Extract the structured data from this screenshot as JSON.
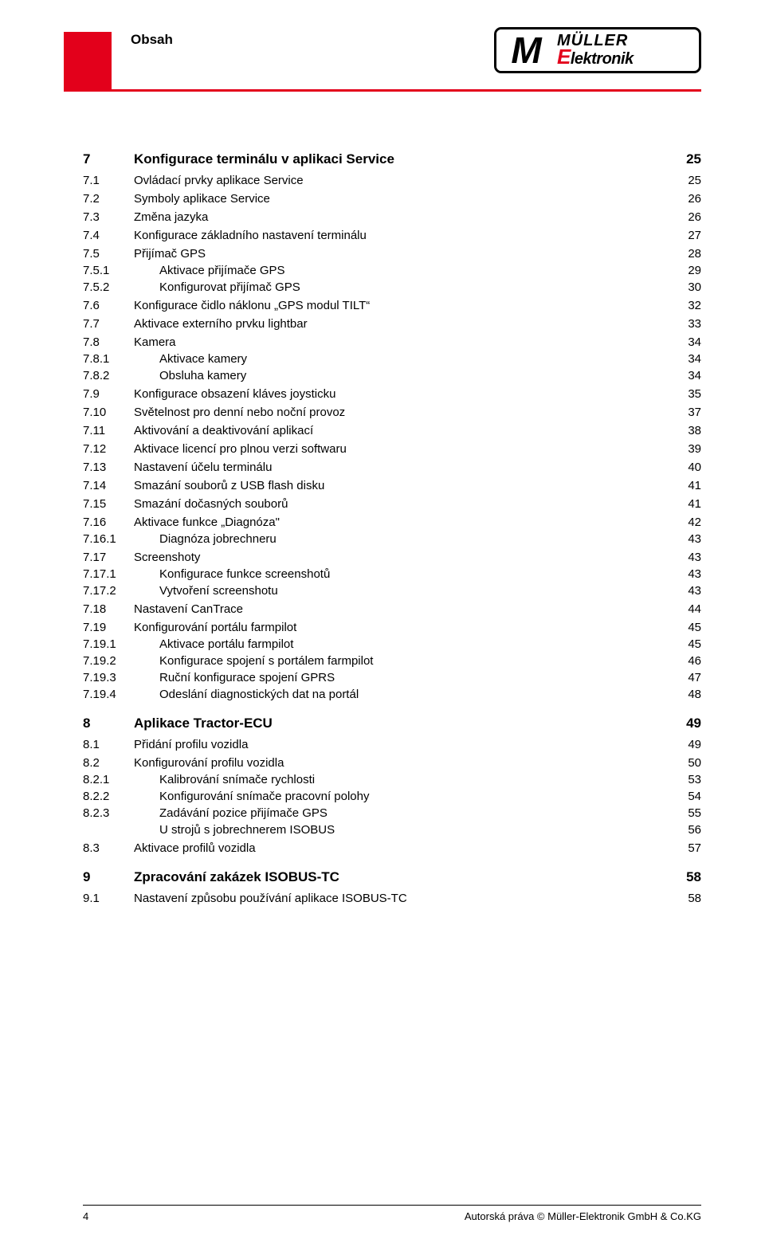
{
  "header": {
    "title": "Obsah"
  },
  "logo": {
    "m": "M",
    "line1": "MÜLLER",
    "line2_e": "E",
    "line2_rest": "lektronik"
  },
  "toc": [
    {
      "l": 1,
      "n": "7",
      "t": "Konfigurace terminálu v aplikaci Service",
      "p": "25"
    },
    {
      "l": 2,
      "n": "7.1",
      "t": "Ovládací prvky aplikace Service",
      "p": "25"
    },
    {
      "l": 2,
      "n": "7.2",
      "t": "Symboly aplikace Service",
      "p": "26"
    },
    {
      "l": 2,
      "n": "7.3",
      "t": "Změna jazyka",
      "p": "26"
    },
    {
      "l": 2,
      "n": "7.4",
      "t": "Konfigurace základního nastavení terminálu",
      "p": "27"
    },
    {
      "l": 2,
      "n": "7.5",
      "t": "Přijímač GPS",
      "p": "28"
    },
    {
      "l": 3,
      "n": "7.5.1",
      "t": "Aktivace přijímače GPS",
      "p": "29"
    },
    {
      "l": 3,
      "n": "7.5.2",
      "t": "Konfigurovat přijímač GPS",
      "p": "30"
    },
    {
      "l": 2,
      "n": "7.6",
      "t": "Konfigurace čidlo náklonu „GPS modul TILT“",
      "p": "32"
    },
    {
      "l": 2,
      "n": "7.7",
      "t": "Aktivace externího prvku lightbar",
      "p": "33"
    },
    {
      "l": 2,
      "n": "7.8",
      "t": "Kamera",
      "p": "34"
    },
    {
      "l": 3,
      "n": "7.8.1",
      "t": "Aktivace kamery",
      "p": "34"
    },
    {
      "l": 3,
      "n": "7.8.2",
      "t": "Obsluha kamery",
      "p": "34"
    },
    {
      "l": 2,
      "n": "7.9",
      "t": "Konfigurace obsazení kláves joysticku",
      "p": "35"
    },
    {
      "l": 2,
      "n": "7.10",
      "t": "Světelnost pro denní nebo noční provoz",
      "p": "37"
    },
    {
      "l": 2,
      "n": "7.11",
      "t": "Aktivování a deaktivování aplikací",
      "p": "38"
    },
    {
      "l": 2,
      "n": "7.12",
      "t": "Aktivace licencí pro plnou verzi softwaru",
      "p": "39"
    },
    {
      "l": 2,
      "n": "7.13",
      "t": "Nastavení účelu terminálu",
      "p": "40"
    },
    {
      "l": 2,
      "n": "7.14",
      "t": "Smazání souborů z USB flash disku",
      "p": "41"
    },
    {
      "l": 2,
      "n": "7.15",
      "t": "Smazání dočasných souborů",
      "p": "41"
    },
    {
      "l": 2,
      "n": "7.16",
      "t": "Aktivace funkce „Diagnóza\"",
      "p": "42"
    },
    {
      "l": 3,
      "n": "7.16.1",
      "t": "Diagnóza jobrechneru",
      "p": "43"
    },
    {
      "l": 2,
      "n": "7.17",
      "t": "Screenshoty",
      "p": "43"
    },
    {
      "l": 3,
      "n": "7.17.1",
      "t": "Konfigurace funkce screenshotů",
      "p": "43"
    },
    {
      "l": 3,
      "n": "7.17.2",
      "t": "Vytvoření screenshotu",
      "p": "43"
    },
    {
      "l": 2,
      "n": "7.18",
      "t": "Nastavení CanTrace",
      "p": "44"
    },
    {
      "l": 2,
      "n": "7.19",
      "t": "Konfigurování portálu farmpilot",
      "p": "45"
    },
    {
      "l": 3,
      "n": "7.19.1",
      "t": "Aktivace portálu farmpilot",
      "p": "45"
    },
    {
      "l": 3,
      "n": "7.19.2",
      "t": "Konfigurace spojení s portálem farmpilot",
      "p": "46"
    },
    {
      "l": 3,
      "n": "7.19.3",
      "t": "Ruční konfigurace spojení GPRS",
      "p": "47"
    },
    {
      "l": 3,
      "n": "7.19.4",
      "t": "Odeslání diagnostických dat na portál",
      "p": "48"
    },
    {
      "l": 1,
      "n": "8",
      "t": "Aplikace Tractor-ECU",
      "p": "49"
    },
    {
      "l": 2,
      "n": "8.1",
      "t": "Přidání profilu vozidla",
      "p": "49"
    },
    {
      "l": 2,
      "n": "8.2",
      "t": "Konfigurování profilu vozidla",
      "p": "50"
    },
    {
      "l": 3,
      "n": "8.2.1",
      "t": "Kalibrování snímače rychlosti",
      "p": "53"
    },
    {
      "l": 3,
      "n": "8.2.2",
      "t": "Konfigurování snímače pracovní polohy",
      "p": "54"
    },
    {
      "l": 3,
      "n": "8.2.3",
      "t": "Zadávání pozice přijímače GPS",
      "p": "55"
    },
    {
      "l": 0,
      "n": "",
      "t": "U strojů s jobrechnerem ISOBUS",
      "p": "56"
    },
    {
      "l": 2,
      "n": "8.3",
      "t": "Aktivace profilů vozidla",
      "p": "57"
    },
    {
      "l": 1,
      "n": "9",
      "t": "Zpracování zakázek ISOBUS-TC",
      "p": "58"
    },
    {
      "l": 2,
      "n": "9.1",
      "t": "Nastavení způsobu používání aplikace ISOBUS-TC",
      "p": "58"
    }
  ],
  "footer": {
    "pagenum": "4",
    "copyright": "Autorská práva © Müller-Elektronik GmbH & Co.KG"
  }
}
